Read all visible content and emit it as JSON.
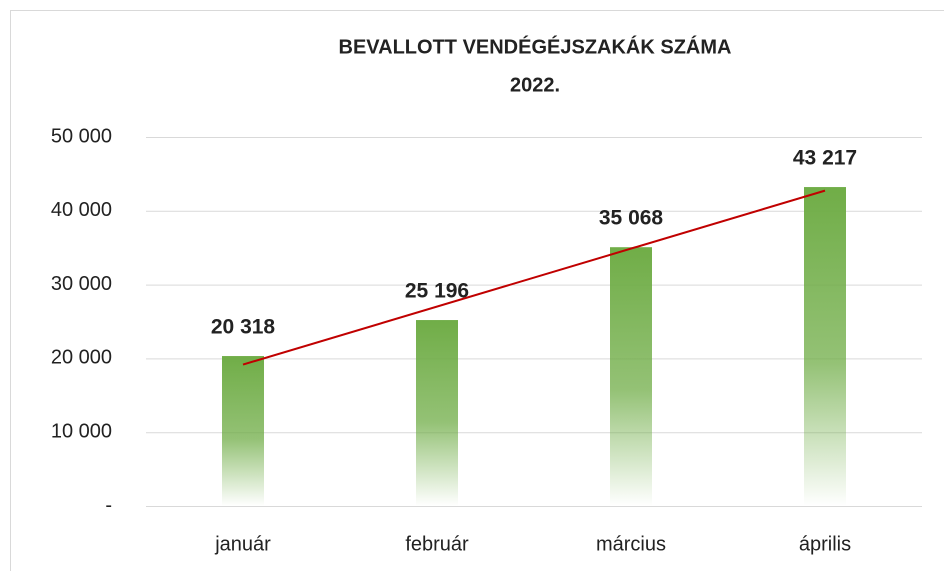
{
  "chart_data": {
    "type": "bar",
    "title": "BEVALLOTT VENDÉGÉJSZAKÁK SZÁMA",
    "subtitle": "2022.",
    "categories": [
      "január",
      "február",
      "március",
      "április"
    ],
    "values": [
      20318,
      25196,
      35068,
      43217
    ],
    "value_labels": [
      "20 318",
      "25 196",
      "35 068",
      "43 217"
    ],
    "color": "#70ad47",
    "trendline": {
      "type": "linear",
      "color": "#c00000"
    },
    "ylim": [
      0,
      50000
    ],
    "yticks": [
      {
        "value": 0,
        "label": "-"
      },
      {
        "value": 10000,
        "label": "10 000"
      },
      {
        "value": 20000,
        "label": "20 000"
      },
      {
        "value": 30000,
        "label": "30 000"
      },
      {
        "value": 40000,
        "label": "40 000"
      },
      {
        "value": 50000,
        "label": "50 000"
      }
    ],
    "grid": true
  }
}
